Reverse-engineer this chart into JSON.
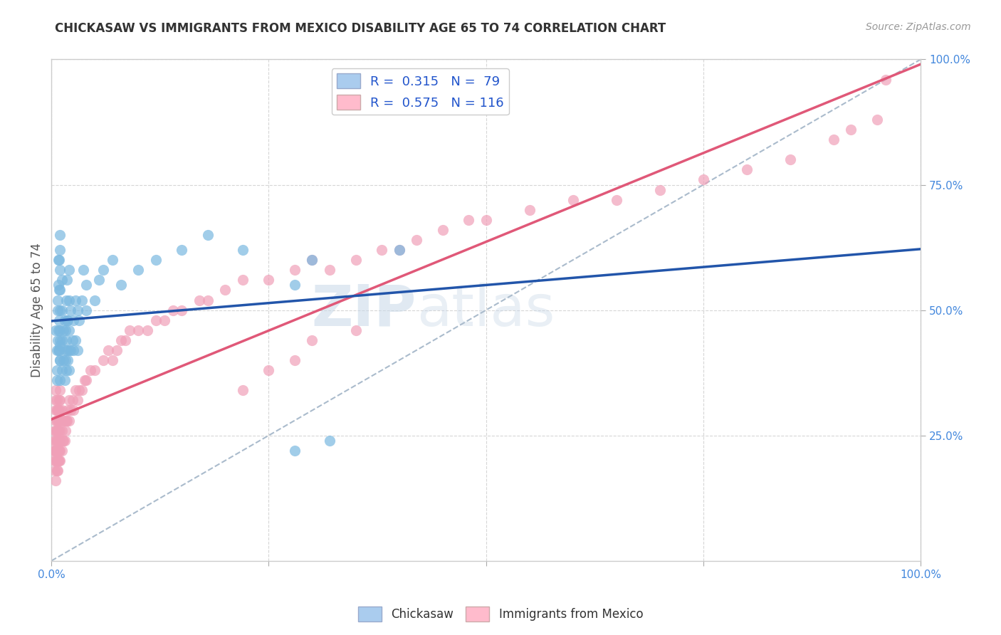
{
  "title": "CHICKASAW VS IMMIGRANTS FROM MEXICO DISABILITY AGE 65 TO 74 CORRELATION CHART",
  "source_text": "Source: ZipAtlas.com",
  "ylabel": "Disability Age 65 to 74",
  "watermark_zip": "ZIP",
  "watermark_atlas": "atlas",
  "chickasaw_color": "#7ab8e0",
  "chickasaw_line_color": "#2255aa",
  "mexico_color": "#f0a0b8",
  "mexico_line_color": "#e05878",
  "background_color": "#ffffff",
  "grid_color": "#bbbbbb",
  "right_tick_color": "#4488dd",
  "title_color": "#333333",
  "source_color": "#999999",
  "legend_box_color1": "#aaccee",
  "legend_box_color2": "#ffbbcc",
  "legend_text_color": "#2255cc",
  "chickasaw_scatter_x": [
    0.005,
    0.006,
    0.006,
    0.006,
    0.007,
    0.007,
    0.007,
    0.008,
    0.008,
    0.008,
    0.008,
    0.009,
    0.009,
    0.009,
    0.009,
    0.01,
    0.01,
    0.01,
    0.01,
    0.01,
    0.01,
    0.01,
    0.01,
    0.01,
    0.01,
    0.01,
    0.012,
    0.012,
    0.012,
    0.012,
    0.014,
    0.014,
    0.015,
    0.015,
    0.015,
    0.016,
    0.016,
    0.017,
    0.017,
    0.017,
    0.018,
    0.018,
    0.018,
    0.019,
    0.019,
    0.02,
    0.02,
    0.02,
    0.02,
    0.02,
    0.022,
    0.022,
    0.024,
    0.025,
    0.025,
    0.028,
    0.028,
    0.03,
    0.03,
    0.032,
    0.035,
    0.037,
    0.04,
    0.04,
    0.05,
    0.055,
    0.06,
    0.07,
    0.08,
    0.1,
    0.12,
    0.15,
    0.18,
    0.22,
    0.28,
    0.3,
    0.4,
    0.28,
    0.32
  ],
  "chickasaw_scatter_y": [
    0.46,
    0.36,
    0.42,
    0.38,
    0.5,
    0.44,
    0.52,
    0.42,
    0.46,
    0.55,
    0.6,
    0.42,
    0.48,
    0.54,
    0.6,
    0.36,
    0.4,
    0.43,
    0.46,
    0.5,
    0.54,
    0.58,
    0.62,
    0.65,
    0.4,
    0.44,
    0.38,
    0.44,
    0.5,
    0.56,
    0.4,
    0.46,
    0.36,
    0.42,
    0.48,
    0.4,
    0.46,
    0.38,
    0.44,
    0.52,
    0.42,
    0.48,
    0.56,
    0.4,
    0.48,
    0.38,
    0.42,
    0.46,
    0.52,
    0.58,
    0.42,
    0.5,
    0.44,
    0.42,
    0.48,
    0.44,
    0.52,
    0.42,
    0.5,
    0.48,
    0.52,
    0.58,
    0.5,
    0.55,
    0.52,
    0.56,
    0.58,
    0.6,
    0.55,
    0.58,
    0.6,
    0.62,
    0.65,
    0.62,
    0.55,
    0.6,
    0.62,
    0.22,
    0.24
  ],
  "mexico_scatter_x": [
    0.002,
    0.003,
    0.003,
    0.004,
    0.004,
    0.004,
    0.005,
    0.005,
    0.005,
    0.005,
    0.005,
    0.005,
    0.005,
    0.005,
    0.005,
    0.006,
    0.006,
    0.006,
    0.006,
    0.006,
    0.006,
    0.006,
    0.006,
    0.007,
    0.007,
    0.007,
    0.007,
    0.007,
    0.007,
    0.007,
    0.008,
    0.008,
    0.008,
    0.008,
    0.009,
    0.009,
    0.009,
    0.009,
    0.009,
    0.01,
    0.01,
    0.01,
    0.01,
    0.01,
    0.01,
    0.01,
    0.01,
    0.012,
    0.012,
    0.012,
    0.013,
    0.014,
    0.014,
    0.015,
    0.015,
    0.016,
    0.017,
    0.018,
    0.019,
    0.02,
    0.02,
    0.022,
    0.024,
    0.025,
    0.028,
    0.03,
    0.032,
    0.035,
    0.038,
    0.04,
    0.045,
    0.05,
    0.06,
    0.065,
    0.07,
    0.075,
    0.08,
    0.085,
    0.09,
    0.1,
    0.11,
    0.12,
    0.13,
    0.14,
    0.15,
    0.17,
    0.18,
    0.2,
    0.22,
    0.25,
    0.28,
    0.3,
    0.32,
    0.35,
    0.38,
    0.4,
    0.42,
    0.45,
    0.48,
    0.5,
    0.55,
    0.6,
    0.65,
    0.7,
    0.75,
    0.8,
    0.85,
    0.9,
    0.92,
    0.95,
    0.96,
    0.3,
    0.35,
    0.28,
    0.25,
    0.22
  ],
  "mexico_scatter_y": [
    0.22,
    0.2,
    0.24,
    0.18,
    0.22,
    0.26,
    0.16,
    0.2,
    0.22,
    0.24,
    0.26,
    0.28,
    0.3,
    0.32,
    0.34,
    0.18,
    0.2,
    0.22,
    0.24,
    0.26,
    0.28,
    0.3,
    0.32,
    0.18,
    0.2,
    0.22,
    0.24,
    0.26,
    0.28,
    0.3,
    0.2,
    0.22,
    0.26,
    0.3,
    0.2,
    0.22,
    0.24,
    0.28,
    0.32,
    0.2,
    0.22,
    0.24,
    0.26,
    0.28,
    0.3,
    0.32,
    0.34,
    0.22,
    0.26,
    0.3,
    0.24,
    0.24,
    0.28,
    0.24,
    0.28,
    0.26,
    0.28,
    0.28,
    0.3,
    0.28,
    0.32,
    0.3,
    0.32,
    0.3,
    0.34,
    0.32,
    0.34,
    0.34,
    0.36,
    0.36,
    0.38,
    0.38,
    0.4,
    0.42,
    0.4,
    0.42,
    0.44,
    0.44,
    0.46,
    0.46,
    0.46,
    0.48,
    0.48,
    0.5,
    0.5,
    0.52,
    0.52,
    0.54,
    0.56,
    0.56,
    0.58,
    0.6,
    0.58,
    0.6,
    0.62,
    0.62,
    0.64,
    0.66,
    0.68,
    0.68,
    0.7,
    0.72,
    0.72,
    0.74,
    0.76,
    0.78,
    0.8,
    0.84,
    0.86,
    0.88,
    0.96,
    0.44,
    0.46,
    0.4,
    0.38,
    0.34
  ]
}
